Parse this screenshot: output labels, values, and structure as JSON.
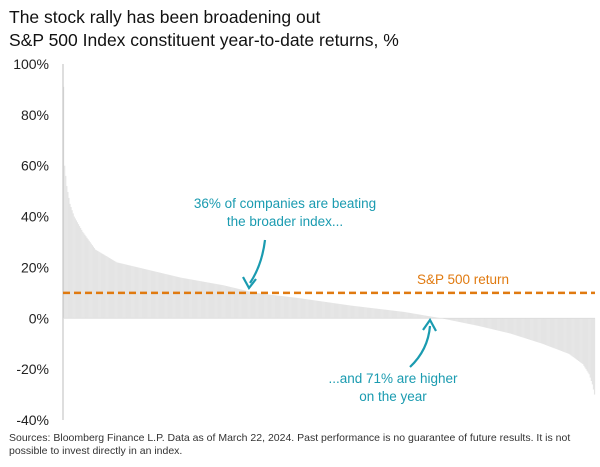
{
  "chart_data": {
    "type": "bar",
    "title": "The stock rally has been broadening out",
    "subtitle": "S&P 500 Index constituent year-to-date returns, %",
    "ylim": [
      -40,
      100
    ],
    "yticks": [
      -40,
      -20,
      0,
      20,
      40,
      60,
      80,
      100
    ],
    "ytick_labels": [
      "-40%",
      "-20%",
      "0%",
      "20%",
      "40%",
      "60%",
      "80%",
      "100%"
    ],
    "sorted_descending": true,
    "constituent_count": 500,
    "distribution_points": [
      {
        "rank": 0,
        "value": 91
      },
      {
        "rank": 1,
        "value": 60
      },
      {
        "rank": 3,
        "value": 52
      },
      {
        "rank": 6,
        "value": 45
      },
      {
        "rank": 10,
        "value": 40
      },
      {
        "rank": 18,
        "value": 34
      },
      {
        "rank": 30,
        "value": 27
      },
      {
        "rank": 50,
        "value": 22
      },
      {
        "rank": 80,
        "value": 19
      },
      {
        "rank": 110,
        "value": 16
      },
      {
        "rank": 150,
        "value": 13
      },
      {
        "rank": 180,
        "value": 10
      },
      {
        "rank": 220,
        "value": 8
      },
      {
        "rank": 270,
        "value": 5
      },
      {
        "rank": 320,
        "value": 2.5
      },
      {
        "rank": 355,
        "value": 0
      },
      {
        "rank": 390,
        "value": -3
      },
      {
        "rank": 420,
        "value": -6
      },
      {
        "rank": 450,
        "value": -10
      },
      {
        "rank": 475,
        "value": -14
      },
      {
        "rank": 488,
        "value": -18
      },
      {
        "rank": 494,
        "value": -22
      },
      {
        "rank": 497,
        "value": -26
      },
      {
        "rank": 499,
        "value": -30
      }
    ],
    "colors": {
      "bars": "#e4e4e4",
      "reference_line": "#e07a10",
      "annotation": "#1a9bb0",
      "axis": "#bdbdbd"
    },
    "reference_line": {
      "label": "S&P 500 return",
      "value": 10
    },
    "annotations": [
      {
        "lines": [
          "36% of companies are beating",
          "the broader index..."
        ]
      },
      {
        "lines": [
          "...and 71% are higher",
          "on the year"
        ]
      }
    ]
  },
  "footer": {
    "line1": "Sources: Bloomberg Finance L.P. Data as of March 22, 2024. Past performance is no guarantee of future results. It is not",
    "line2": "possible to invest directly in an index."
  }
}
